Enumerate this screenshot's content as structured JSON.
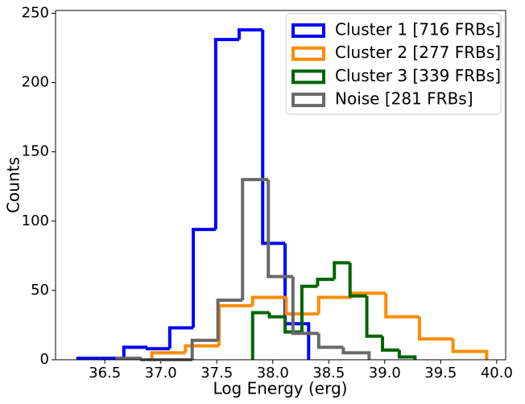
{
  "chart_data": {
    "type": "histogram",
    "xlabel": "Log Energy (erg)",
    "ylabel": "Counts",
    "xlim": [
      36.06,
      40.08
    ],
    "ylim": [
      0,
      252
    ],
    "xticks": [
      {
        "value": 36.5,
        "label": "36.5"
      },
      {
        "value": 37.0,
        "label": "37.0"
      },
      {
        "value": 37.5,
        "label": "37.5"
      },
      {
        "value": 38.0,
        "label": "38.0"
      },
      {
        "value": 38.5,
        "label": "38.5"
      },
      {
        "value": 39.0,
        "label": "39.0"
      },
      {
        "value": 39.5,
        "label": "39.5"
      },
      {
        "value": 40.0,
        "label": "40.0"
      }
    ],
    "yticks": [
      0,
      50,
      100,
      150,
      200,
      250
    ],
    "legend": "upper right",
    "series": [
      {
        "name": "Cluster 1 [716 FRBs]",
        "color": "#0000ff",
        "bins": [
          36.26,
          36.46,
          36.67,
          36.88,
          37.08,
          37.29,
          37.49,
          37.7,
          37.91,
          38.11,
          38.32
        ],
        "values": [
          1,
          1,
          9,
          8,
          23,
          94,
          231,
          238,
          84,
          26
        ]
      },
      {
        "name": "Cluster 2 [277 FRBs]",
        "color": "#ff8c00",
        "bins": [
          36.92,
          37.22,
          37.52,
          37.82,
          38.12,
          38.41,
          38.71,
          39.01,
          39.31,
          39.61,
          39.91
        ],
        "values": [
          5,
          10,
          39,
          45,
          33,
          45,
          48,
          31,
          15,
          6
        ]
      },
      {
        "name": "Cluster 3 [339 FRBs]",
        "color": "#006400",
        "bins": [
          37.82,
          37.97,
          38.11,
          38.26,
          38.4,
          38.55,
          38.69,
          38.84,
          38.98,
          39.13,
          39.27
        ],
        "values": [
          34,
          31,
          20,
          53,
          58,
          70,
          46,
          17,
          7,
          2
        ]
      },
      {
        "name": "Noise [281 FRBs]",
        "color": "#696969",
        "bins": [
          36.61,
          36.83,
          37.06,
          37.28,
          37.51,
          37.73,
          37.96,
          38.18,
          38.41,
          38.63,
          38.86
        ],
        "values": [
          1,
          0,
          0,
          14,
          43,
          130,
          60,
          19,
          9,
          5
        ]
      }
    ]
  }
}
